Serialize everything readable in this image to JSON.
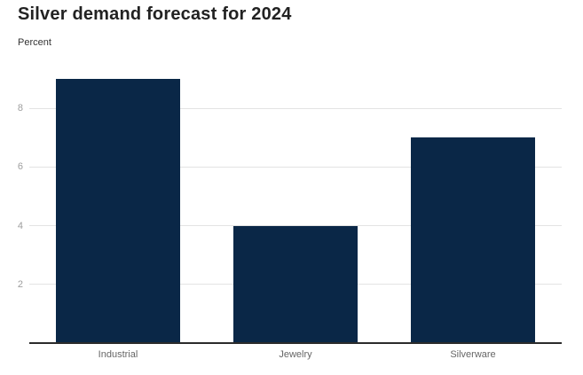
{
  "title": "Silver demand forecast for 2024",
  "subtitle": "Percent",
  "colors": {
    "bar": "#0a2747",
    "gridline": "#e3e3e3",
    "axis_line": "#2b2b2b",
    "tick_label": "#9e9e9e",
    "category_label": "#666666",
    "title": "#222222",
    "background": "#ffffff"
  },
  "chart_data": {
    "type": "bar",
    "categories": [
      "Industrial",
      "Jewelry",
      "Silverware"
    ],
    "values": [
      9,
      4,
      7
    ],
    "title": "Silver demand forecast for 2024",
    "xlabel": "",
    "ylabel": "Percent",
    "ylim": [
      0,
      9
    ],
    "yticks": [
      2,
      4,
      6,
      8
    ],
    "grid": true,
    "legend": false
  }
}
